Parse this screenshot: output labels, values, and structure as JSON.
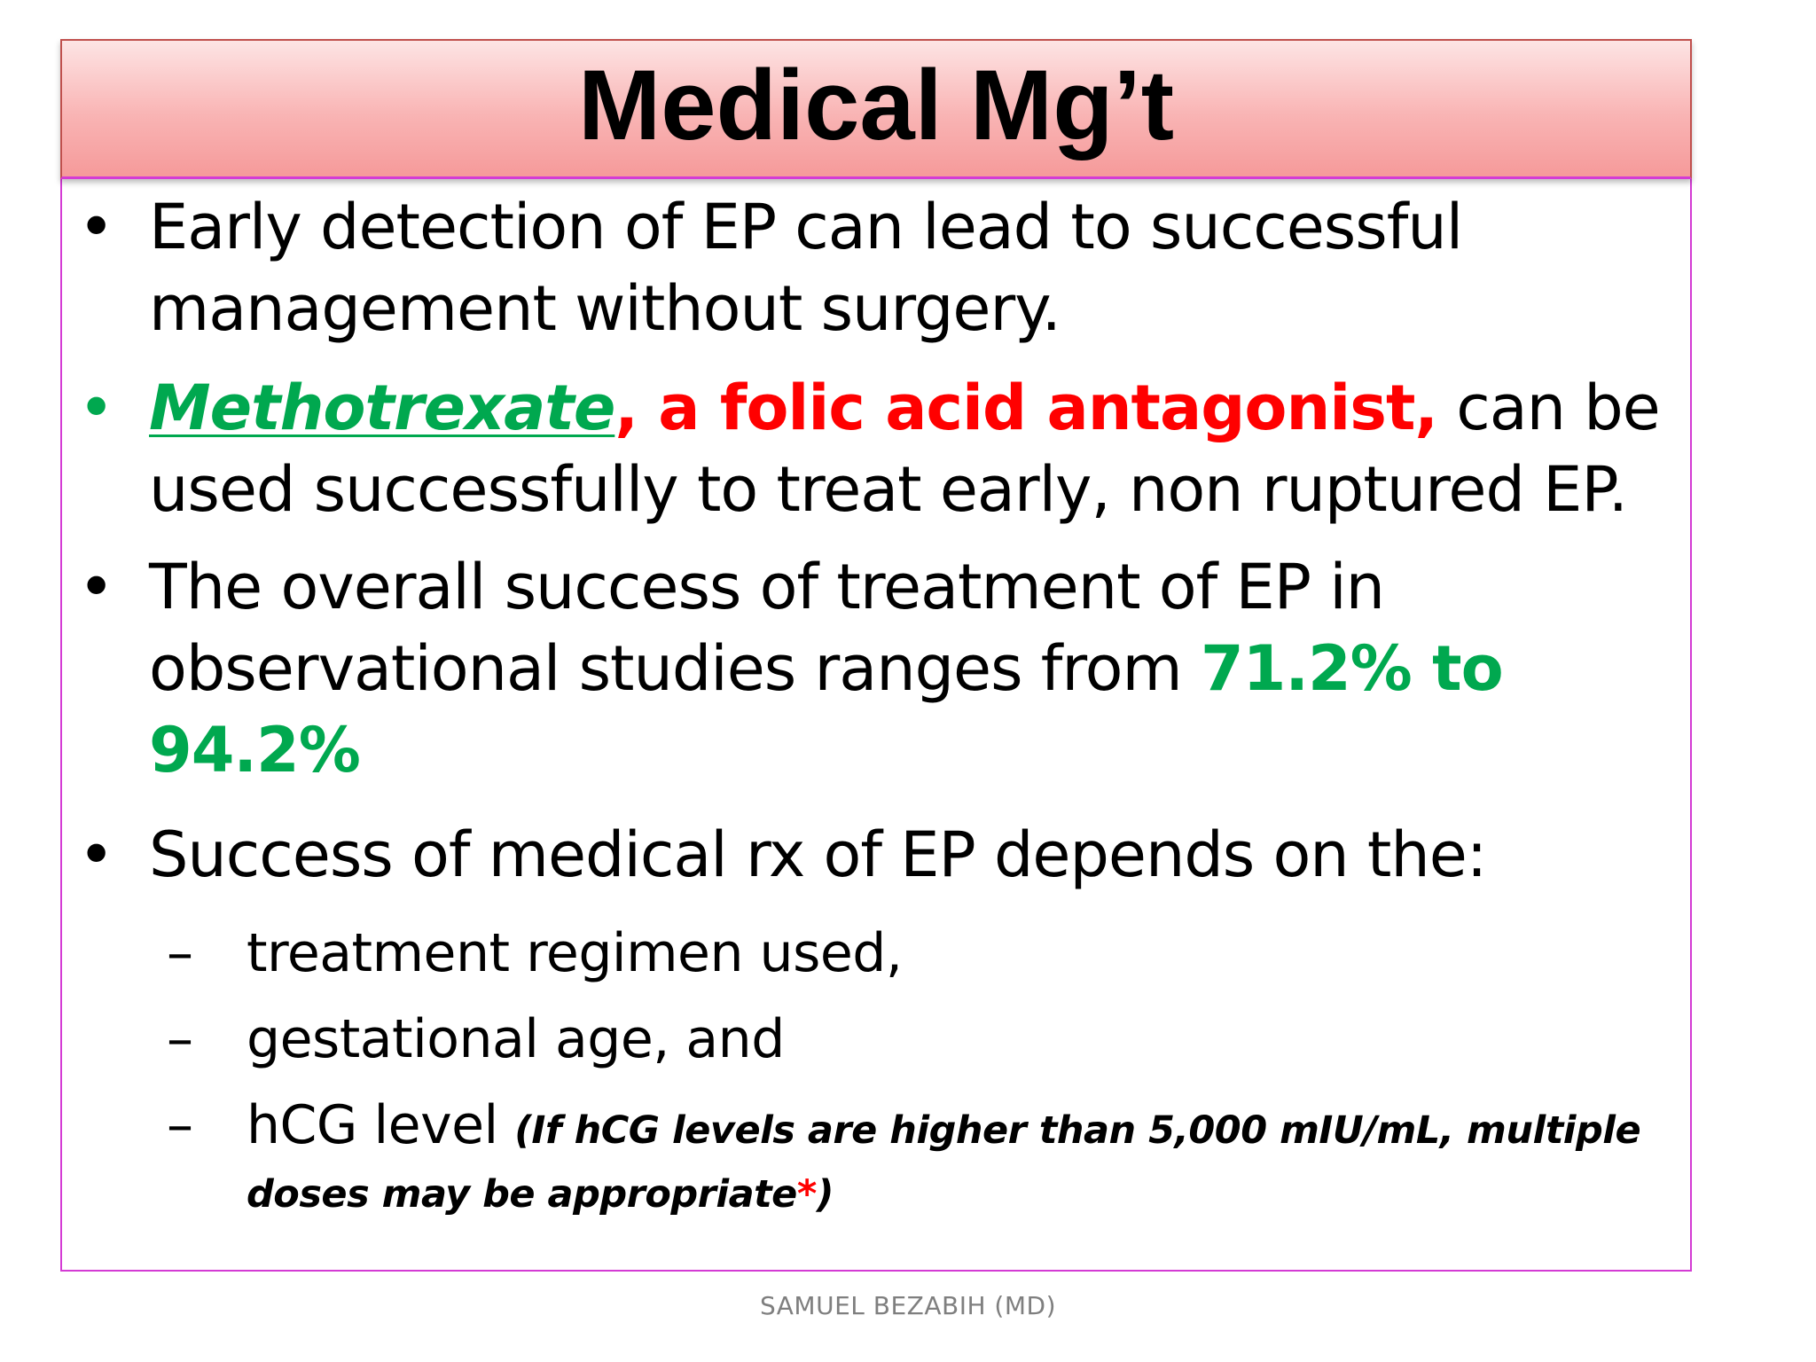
{
  "slide": {
    "title": "Medical Mg’t",
    "bullet_symbol": "•",
    "dash_symbol": "–",
    "bullets": [
      {
        "text": "Early detection of EP can lead to successful management without surgery."
      },
      {
        "methotrexate": "Methotrexate",
        "antagonist": ", a folic acid antagonist,",
        "rest": " can be used successfully to treat early, non ruptured EP."
      },
      {
        "lead": "The overall  success of treatment of EP  in observational studies ranges from ",
        "range": "71.2% to 94.2%"
      },
      {
        "text": "Success of medical rx of EP depends on the:",
        "sub_items": [
          {
            "text": "treatment regimen used,"
          },
          {
            "text": "gestational age, and"
          },
          {
            "text": "hCG level ",
            "note_open": "(If hCG levels are higher than 5,000 mIU/mL, multiple doses may be appropriate",
            "asterisk": "*",
            "note_close": ")"
          }
        ]
      }
    ],
    "footer": "SAMUEL BEZABIH (MD)"
  },
  "colors": {
    "green": "#00a84f",
    "red": "#ff0000",
    "frame": "#d43bd4",
    "title_bg": "#f9b4b4",
    "footer_text": "#7f7f7f"
  }
}
